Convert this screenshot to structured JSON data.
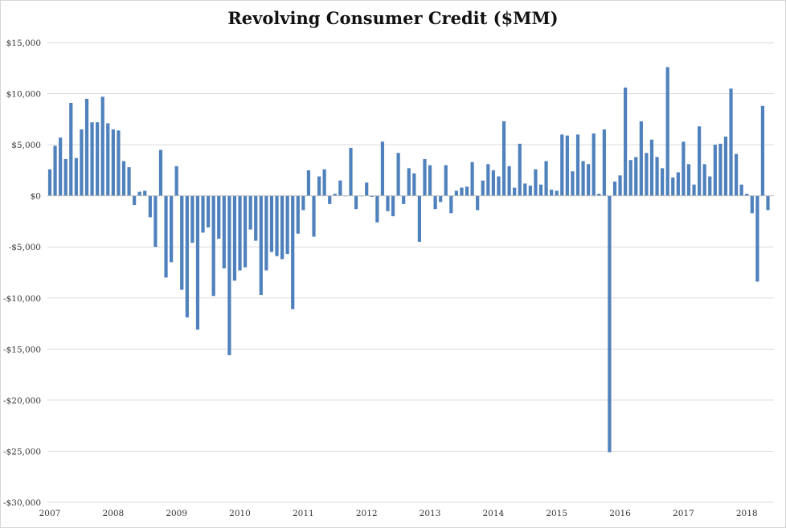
{
  "chart_data": {
    "type": "bar",
    "title": "Revolving Consumer Credit ($MM)",
    "xlabel": "",
    "ylabel": "",
    "ylim": [
      -30000,
      15000
    ],
    "y_ticks": [
      15000,
      10000,
      5000,
      0,
      -5000,
      -10000,
      -15000,
      -20000,
      -25000,
      -30000
    ],
    "y_tick_labels": [
      "$15,000",
      "$10,000",
      "$5,000",
      "$0",
      "-$5,000",
      "-$10,000",
      "-$15,000",
      "-$20,000",
      "-$25,000",
      "-$30,000"
    ],
    "x_tick_labels": [
      "2007",
      "2008",
      "2009",
      "2010",
      "2011",
      "2012",
      "2013",
      "2014",
      "2015",
      "2016",
      "2017",
      "2018"
    ],
    "grid": "horizontal",
    "bar_color": "#4f81bd",
    "start": "2007-01",
    "frequency": "monthly",
    "values": [
      2600,
      4900,
      5700,
      3600,
      9100,
      3700,
      6500,
      9500,
      7200,
      7200,
      9700,
      7100,
      6500,
      6400,
      3400,
      2800,
      -900,
      400,
      500,
      -2100,
      -5000,
      4500,
      -8000,
      -6500,
      2900,
      -9200,
      -11900,
      -4600,
      -13100,
      -3600,
      -3100,
      -9800,
      -4200,
      -7100,
      -15600,
      -8300,
      -7300,
      -7000,
      -3300,
      -4400,
      -9700,
      -7300,
      -5500,
      -5900,
      -6200,
      -5700,
      -11100,
      -3700,
      -1400,
      2500,
      -4000,
      1900,
      2600,
      -800,
      200,
      1500,
      0,
      4700,
      -1300,
      0,
      1300,
      -100,
      -2600,
      5300,
      -1500,
      -2000,
      4200,
      -800,
      2700,
      2200,
      -4500,
      3600,
      3000,
      -1300,
      -600,
      3000,
      -1700,
      500,
      800,
      900,
      3300,
      -1400,
      1500,
      3100,
      2500,
      1900,
      7300,
      2900,
      800,
      5100,
      1200,
      1000,
      2600,
      1100,
      3400,
      600,
      500,
      6000,
      5900,
      2400,
      6000,
      3400,
      3100,
      6100,
      200,
      6500,
      -25100,
      1400,
      2000,
      10600,
      3500,
      3800,
      7300,
      4200,
      5500,
      3800,
      2700,
      12600,
      1800,
      2300,
      5300,
      3100,
      1100,
      6800,
      3100,
      1900,
      5000,
      5100,
      5800,
      10500,
      4100,
      1100,
      200,
      -1700,
      -8400,
      8800,
      -1400
    ]
  }
}
